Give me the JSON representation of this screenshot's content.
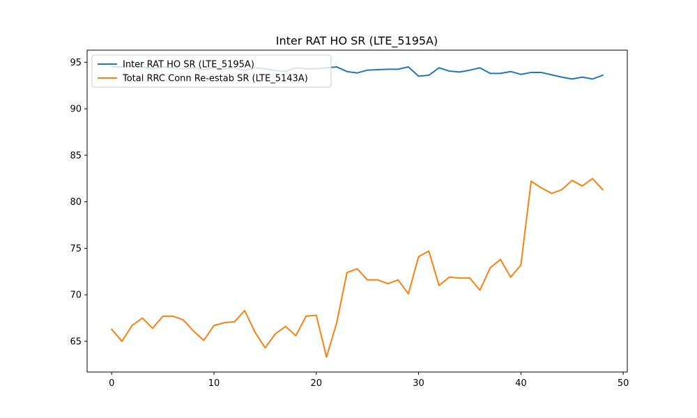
{
  "chart_data": {
    "type": "line",
    "title": "Inter RAT HO SR (LTE_5195A)",
    "xlabel": "",
    "ylabel": "",
    "xlim": [
      -2.4,
      50.4
    ],
    "ylim": [
      61.7,
      96.3
    ],
    "xticks": [
      0,
      10,
      20,
      30,
      40,
      50
    ],
    "yticks": [
      65,
      70,
      75,
      80,
      85,
      90,
      95
    ],
    "grid": false,
    "legend_position": "top-left",
    "series": [
      {
        "name": "Inter RAT HO SR (LTE_5195A)",
        "color": "#1f77b4",
        "x": [
          0,
          1,
          2,
          3,
          4,
          5,
          6,
          7,
          8,
          9,
          10,
          11,
          12,
          13,
          14,
          15,
          16,
          17,
          18,
          19,
          20,
          21,
          22,
          23,
          24,
          25,
          26,
          27,
          28,
          29,
          30,
          31,
          32,
          33,
          34,
          35,
          36,
          37,
          38,
          39,
          40,
          41,
          42,
          43,
          44,
          45,
          46,
          47,
          48
        ],
        "values": [
          94.5,
          94.5,
          94.6,
          94.5,
          94.3,
          94.5,
          94.4,
          94.3,
          94.4,
          94.2,
          94.4,
          94.3,
          94.4,
          94.1,
          94.4,
          94.3,
          94.1,
          94.0,
          94.4,
          94.3,
          94.3,
          94.4,
          94.5,
          94.0,
          93.85,
          94.15,
          94.2,
          94.25,
          94.25,
          94.5,
          93.5,
          93.6,
          94.4,
          94.05,
          93.95,
          94.15,
          94.4,
          93.8,
          93.8,
          94.0,
          93.7,
          93.9,
          93.9,
          93.65,
          93.4,
          93.2,
          93.4,
          93.2,
          93.6
        ]
      },
      {
        "name": "Total RRC Conn Re-estab SR (LTE_5143A)",
        "color": "#ff7f0e",
        "x": [
          0,
          1,
          2,
          3,
          4,
          5,
          6,
          7,
          8,
          9,
          10,
          11,
          12,
          13,
          14,
          15,
          16,
          17,
          18,
          19,
          20,
          21,
          22,
          23,
          24,
          25,
          26,
          27,
          28,
          29,
          30,
          31,
          32,
          33,
          34,
          35,
          36,
          37,
          38,
          39,
          40,
          41,
          42,
          43,
          44,
          45,
          46,
          47,
          48
        ],
        "values": [
          66.3,
          65.0,
          66.7,
          67.5,
          66.4,
          67.7,
          67.7,
          67.3,
          66.1,
          65.1,
          66.7,
          67.0,
          67.1,
          68.3,
          66.0,
          64.3,
          65.8,
          66.6,
          65.6,
          67.7,
          67.8,
          63.3,
          67.0,
          72.4,
          72.8,
          71.6,
          71.6,
          71.2,
          71.6,
          70.1,
          74.1,
          74.7,
          71.0,
          71.9,
          71.8,
          71.8,
          70.5,
          72.9,
          73.8,
          71.9,
          73.2,
          82.2,
          81.5,
          80.9,
          81.3,
          82.3,
          81.7,
          82.5,
          81.3
        ]
      }
    ]
  }
}
